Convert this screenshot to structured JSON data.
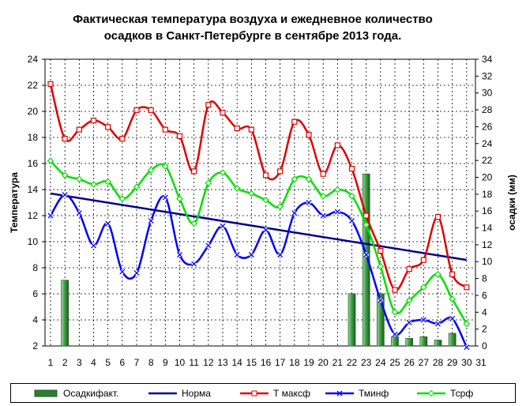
{
  "chart_data": {
    "type": "line",
    "title_lines": [
      "Фактическая температура воздуха и ежедневное количество",
      "осадков в Санкт-Петербурге в сентябре 2013 года."
    ],
    "xlabel": "",
    "ylabel_left": "Температура",
    "ylabel_right": "осадки (мм)",
    "x_ticks": [
      "1",
      "2",
      "3",
      "4",
      "5",
      "6",
      "7",
      "8",
      "9",
      "10",
      "11",
      "12",
      "13",
      "14",
      "15",
      "16",
      "17",
      "18",
      "19",
      "20",
      "21",
      "22",
      "23",
      "24",
      "25",
      "26",
      "27",
      "28",
      "29",
      "30",
      "31"
    ],
    "xlim": [
      1,
      31
    ],
    "ylim_left": [
      2,
      24
    ],
    "y_ticks_left": [
      "2",
      "4",
      "6",
      "8",
      "10",
      "12",
      "14",
      "16",
      "18",
      "20",
      "22",
      "24"
    ],
    "ylim_right": [
      0,
      34
    ],
    "y_ticks_right": [
      "0",
      "2",
      "4",
      "6",
      "8",
      "10",
      "12",
      "14",
      "16",
      "18",
      "20",
      "22",
      "24",
      "26",
      "28",
      "30",
      "32",
      "34"
    ],
    "grid": true,
    "legend_position": "bottom",
    "bars": {
      "name": "Осадкифакт.",
      "axis": "right",
      "color": "#2e7d32",
      "x": [
        2,
        22,
        23,
        24,
        25,
        26,
        27,
        28,
        29
      ],
      "values": [
        7.8,
        6.2,
        20.4,
        6.2,
        1.1,
        0.9,
        1.1,
        0.7,
        1.5
      ]
    },
    "series": [
      {
        "name": "Норма",
        "color": "#00008b",
        "marker": "none",
        "x": [
          1,
          30
        ],
        "values": [
          13.7,
          8.6
        ]
      },
      {
        "name": "Т максф",
        "color": "#e00000",
        "marker": "square",
        "x": [
          1,
          2,
          3,
          4,
          5,
          6,
          7,
          8,
          9,
          10,
          11,
          12,
          13,
          14,
          15,
          16,
          17,
          18,
          19,
          20,
          21,
          22,
          23,
          24,
          25,
          26,
          27,
          28,
          29,
          30
        ],
        "values": [
          22.1,
          17.9,
          18.6,
          19.3,
          18.8,
          17.9,
          20.1,
          20.1,
          18.6,
          18.1,
          15.4,
          20.5,
          19.9,
          18.7,
          18.6,
          15.1,
          15.4,
          19.2,
          18.2,
          15.2,
          17.4,
          15.6,
          12.0,
          9.3,
          6.3,
          7.9,
          8.6,
          11.9,
          7.5,
          6.5
        ]
      },
      {
        "name": "Тминф",
        "color": "#0000ff",
        "marker": "x",
        "x": [
          1,
          2,
          3,
          4,
          5,
          6,
          7,
          8,
          9,
          10,
          11,
          12,
          13,
          14,
          15,
          16,
          17,
          18,
          19,
          20,
          21,
          22,
          23,
          24,
          25,
          26,
          27,
          28,
          29,
          30
        ],
        "values": [
          12.0,
          13.6,
          12.2,
          9.7,
          11.4,
          7.7,
          7.6,
          11.6,
          13.4,
          9.0,
          8.3,
          9.7,
          11.2,
          9.0,
          9.0,
          10.9,
          9.0,
          12.2,
          13.0,
          12.0,
          12.3,
          11.6,
          9.0,
          5.5,
          2.9,
          3.8,
          4.0,
          3.7,
          4.1,
          1.9
        ]
      },
      {
        "name": "Тсрф",
        "color": "#00e000",
        "marker": "diamond",
        "x": [
          1,
          2,
          3,
          4,
          5,
          6,
          7,
          8,
          9,
          10,
          11,
          12,
          13,
          14,
          15,
          16,
          17,
          18,
          19,
          20,
          21,
          22,
          23,
          24,
          25,
          26,
          27,
          28,
          29,
          30
        ],
        "values": [
          16.2,
          15.1,
          14.8,
          14.4,
          14.6,
          13.3,
          14.2,
          15.5,
          15.8,
          13.3,
          11.4,
          14.5,
          15.3,
          14.1,
          13.7,
          13.2,
          12.7,
          14.8,
          14.8,
          13.5,
          14.0,
          13.5,
          11.3,
          8.1,
          4.6,
          5.5,
          6.5,
          7.5,
          5.6,
          3.7
        ]
      }
    ]
  }
}
